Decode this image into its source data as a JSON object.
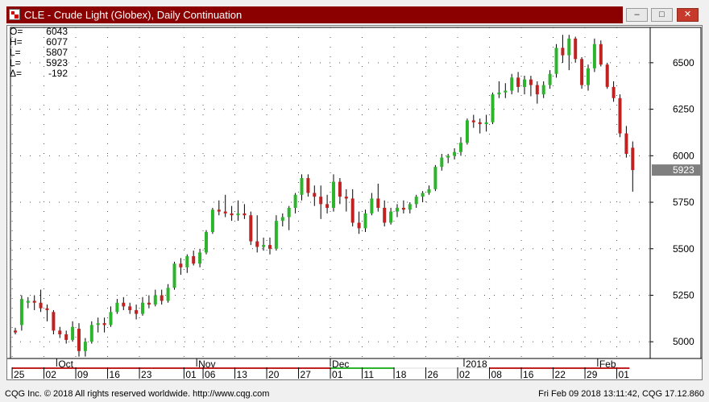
{
  "window": {
    "title": "CLE - Crude Light (Globex), Daily Continuation",
    "minimize_glyph": "–",
    "maximize_glyph": "□",
    "close_glyph": "✕"
  },
  "ohlc_readout": [
    {
      "label": "O=",
      "value": "6043"
    },
    {
      "label": "H=",
      "value": "6077"
    },
    {
      "label": "L=",
      "value": "5807"
    },
    {
      "label": "L=",
      "value": "5923"
    },
    {
      "label": "Δ=",
      "value": "-192"
    }
  ],
  "footer": {
    "left": "CQG Inc. © 2018 All rights reserved worldwide. http://www.cqg.com",
    "right": "Fri Feb 09 2018 13:11:42, CQG 17.12.860"
  },
  "colors": {
    "up": "#2cb52c",
    "down": "#c02222",
    "last_price_bg": "#7f7f7f",
    "titlebar": "#8b0000"
  },
  "chart_data": {
    "type": "candlestick",
    "y_ticks": [
      "5000",
      "5250",
      "5500",
      "5750",
      "6000",
      "6250",
      "6500"
    ],
    "ylim": [
      4910,
      6690
    ],
    "last_price": "5923",
    "month_labels": [
      "Oct",
      "Nov",
      "Dec",
      "2018",
      "Feb"
    ],
    "month_label_index": [
      7,
      29,
      50,
      71,
      92
    ],
    "day_labels": [
      "25",
      "02",
      "09",
      "16",
      "23",
      "01",
      "06",
      "13",
      "20",
      "27",
      "01",
      "11",
      "18",
      "26",
      "02",
      "08",
      "16",
      "22",
      "29",
      "01"
    ],
    "day_label_index": [
      0,
      5,
      10,
      15,
      20,
      27,
      30,
      35,
      40,
      45,
      50,
      55,
      60,
      65,
      70,
      75,
      80,
      85,
      90,
      95
    ],
    "candles": [
      [
        5060,
        5075,
        5040,
        5050
      ],
      [
        5090,
        5250,
        5060,
        5230
      ],
      [
        5210,
        5240,
        5180,
        5220
      ],
      [
        5220,
        5250,
        5170,
        5210
      ],
      [
        5210,
        5280,
        5160,
        5180
      ],
      [
        5180,
        5200,
        5110,
        5170
      ],
      [
        5160,
        5170,
        5040,
        5060
      ],
      [
        5060,
        5080,
        5020,
        5040
      ],
      [
        5040,
        5060,
        4990,
        5010
      ],
      [
        5010,
        5110,
        5000,
        5080
      ],
      [
        5070,
        5100,
        4920,
        4950
      ],
      [
        4950,
        5020,
        4920,
        5000
      ],
      [
        5000,
        5110,
        4990,
        5090
      ],
      [
        5090,
        5130,
        5050,
        5100
      ],
      [
        5100,
        5130,
        5050,
        5090
      ],
      [
        5090,
        5190,
        5080,
        5160
      ],
      [
        5160,
        5230,
        5150,
        5210
      ],
      [
        5210,
        5240,
        5170,
        5190
      ],
      [
        5190,
        5210,
        5150,
        5170
      ],
      [
        5170,
        5200,
        5120,
        5150
      ],
      [
        5150,
        5240,
        5140,
        5210
      ],
      [
        5210,
        5250,
        5180,
        5200
      ],
      [
        5200,
        5280,
        5190,
        5250
      ],
      [
        5250,
        5280,
        5200,
        5220
      ],
      [
        5220,
        5310,
        5210,
        5290
      ],
      [
        5290,
        5430,
        5280,
        5420
      ],
      [
        5420,
        5450,
        5360,
        5400
      ],
      [
        5400,
        5470,
        5370,
        5460
      ],
      [
        5460,
        5490,
        5410,
        5420
      ],
      [
        5420,
        5500,
        5400,
        5480
      ],
      [
        5480,
        5600,
        5470,
        5590
      ],
      [
        5590,
        5720,
        5580,
        5710
      ],
      [
        5710,
        5760,
        5680,
        5700
      ],
      [
        5700,
        5790,
        5670,
        5690
      ],
      [
        5690,
        5730,
        5650,
        5680
      ],
      [
        5680,
        5760,
        5650,
        5690
      ],
      [
        5690,
        5740,
        5660,
        5680
      ],
      [
        5680,
        5700,
        5520,
        5540
      ],
      [
        5540,
        5680,
        5480,
        5510
      ],
      [
        5510,
        5560,
        5490,
        5520
      ],
      [
        5520,
        5560,
        5470,
        5500
      ],
      [
        5500,
        5680,
        5490,
        5650
      ],
      [
        5650,
        5690,
        5620,
        5670
      ],
      [
        5670,
        5730,
        5600,
        5720
      ],
      [
        5720,
        5800,
        5690,
        5790
      ],
      [
        5790,
        5900,
        5760,
        5880
      ],
      [
        5880,
        5900,
        5780,
        5800
      ],
      [
        5800,
        5840,
        5730,
        5780
      ],
      [
        5780,
        5840,
        5660,
        5740
      ],
      [
        5740,
        5790,
        5690,
        5720
      ],
      [
        5720,
        5900,
        5700,
        5860
      ],
      [
        5860,
        5880,
        5740,
        5780
      ],
      [
        5780,
        5820,
        5700,
        5770
      ],
      [
        5770,
        5820,
        5620,
        5640
      ],
      [
        5640,
        5700,
        5580,
        5610
      ],
      [
        5610,
        5710,
        5590,
        5690
      ],
      [
        5690,
        5800,
        5680,
        5770
      ],
      [
        5770,
        5850,
        5700,
        5720
      ],
      [
        5720,
        5760,
        5620,
        5640
      ],
      [
        5640,
        5720,
        5630,
        5700
      ],
      [
        5700,
        5740,
        5670,
        5720
      ],
      [
        5720,
        5760,
        5690,
        5710
      ],
      [
        5710,
        5750,
        5690,
        5740
      ],
      [
        5740,
        5790,
        5720,
        5780
      ],
      [
        5780,
        5810,
        5750,
        5800
      ],
      [
        5800,
        5840,
        5790,
        5820
      ],
      [
        5820,
        5950,
        5810,
        5940
      ],
      [
        5940,
        6010,
        5920,
        5990
      ],
      [
        5990,
        6010,
        5960,
        6000
      ],
      [
        6000,
        6040,
        5980,
        6020
      ],
      [
        6020,
        6100,
        6000,
        6070
      ],
      [
        6070,
        6200,
        6060,
        6190
      ],
      [
        6190,
        6220,
        6150,
        6180
      ],
      [
        6180,
        6200,
        6120,
        6170
      ],
      [
        6170,
        6220,
        6130,
        6180
      ],
      [
        6180,
        6340,
        6170,
        6330
      ],
      [
        6330,
        6400,
        6310,
        6340
      ],
      [
        6340,
        6390,
        6310,
        6350
      ],
      [
        6350,
        6440,
        6330,
        6420
      ],
      [
        6420,
        6450,
        6340,
        6370
      ],
      [
        6370,
        6430,
        6330,
        6410
      ],
      [
        6410,
        6430,
        6320,
        6380
      ],
      [
        6380,
        6400,
        6280,
        6330
      ],
      [
        6330,
        6400,
        6310,
        6380
      ],
      [
        6380,
        6460,
        6360,
        6440
      ],
      [
        6440,
        6600,
        6420,
        6580
      ],
      [
        6580,
        6650,
        6500,
        6540
      ],
      [
        6540,
        6650,
        6460,
        6630
      ],
      [
        6630,
        6640,
        6500,
        6520
      ],
      [
        6520,
        6530,
        6360,
        6380
      ],
      [
        6380,
        6490,
        6350,
        6470
      ],
      [
        6470,
        6630,
        6450,
        6600
      ],
      [
        6600,
        6620,
        6480,
        6490
      ],
      [
        6490,
        6500,
        6360,
        6370
      ],
      [
        6370,
        6400,
        6290,
        6310
      ],
      [
        6310,
        6330,
        6100,
        6120
      ],
      [
        6120,
        6160,
        5990,
        6010
      ],
      [
        6043,
        6077,
        5807,
        5923
      ]
    ]
  }
}
